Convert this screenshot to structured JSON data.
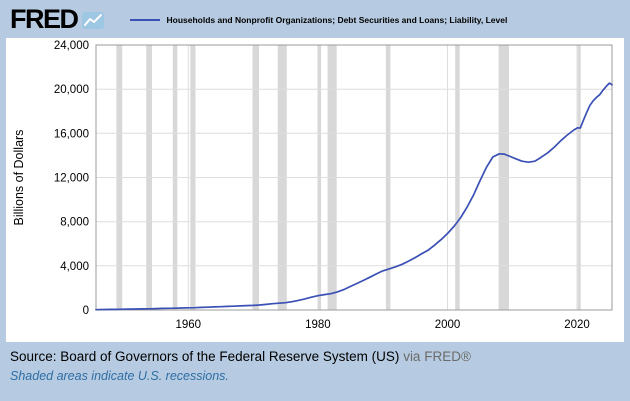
{
  "colors": {
    "frame_bg": "#b6cbe1",
    "plot_bg": "#ffffff",
    "grid": "#dedede",
    "plot_border": "#9b9b9b",
    "recession": "#d8d8d8",
    "line": "#3a50b4",
    "axis_text": "#000000",
    "source_muted": "#6b6b6b",
    "note_blue": "#2e6da4",
    "logo_icon_bg": "#9ec7e4",
    "logo_icon_line": "#ffffff"
  },
  "header": {
    "logo_text": "FRED",
    "legend_label": "Households and Nonprofit Organizations; Debt Securities and Loans; Liability, Level"
  },
  "footer": {
    "source_prefix": "Source: Board of Governors of the Federal Reserve System (US)",
    "source_suffix": "via FRED®",
    "note": "Shaded areas indicate U.S. recessions."
  },
  "chart_data": {
    "type": "line",
    "title": "Households and Nonprofit Organizations; Debt Securities and Loans; Liability, Level",
    "xlabel": "",
    "ylabel": "Billions of Dollars",
    "xlim": [
      1945.75,
      2025.4
    ],
    "ylim": [
      0,
      24000
    ],
    "y_ticks": [
      0,
      4000,
      8000,
      12000,
      16000,
      20000,
      24000
    ],
    "y_tick_labels": [
      "0",
      "4,000",
      "8,000",
      "12,000",
      "16,000",
      "20,000",
      "24,000"
    ],
    "x_ticks": [
      1960,
      1980,
      2000,
      2020
    ],
    "x_tick_labels": [
      "1960",
      "1980",
      "2000",
      "2020"
    ],
    "grid": true,
    "legend_position": "top",
    "recessions": [
      [
        1948.9,
        1949.8
      ],
      [
        1953.5,
        1954.4
      ],
      [
        1957.6,
        1958.3
      ],
      [
        1960.3,
        1961.1
      ],
      [
        1969.9,
        1970.9
      ],
      [
        1973.8,
        1975.2
      ],
      [
        1980.0,
        1980.5
      ],
      [
        1981.5,
        1982.9
      ],
      [
        1990.5,
        1991.2
      ],
      [
        2001.2,
        2001.9
      ],
      [
        2007.9,
        2009.5
      ],
      [
        2020.1,
        2020.3
      ]
    ],
    "series": [
      {
        "name": "Households and Nonprofit Organizations; Debt Securities and Loans; Liability, Level",
        "points": [
          [
            1945.75,
            29
          ],
          [
            1947,
            45
          ],
          [
            1948,
            52
          ],
          [
            1949,
            58
          ],
          [
            1950,
            68
          ],
          [
            1951,
            78
          ],
          [
            1952,
            90
          ],
          [
            1953,
            101
          ],
          [
            1954,
            112
          ],
          [
            1955,
            130
          ],
          [
            1956,
            143
          ],
          [
            1957,
            153
          ],
          [
            1958,
            164
          ],
          [
            1959,
            185
          ],
          [
            1960,
            199
          ],
          [
            1961,
            212
          ],
          [
            1962,
            231
          ],
          [
            1963,
            254
          ],
          [
            1964,
            278
          ],
          [
            1965,
            302
          ],
          [
            1966,
            322
          ],
          [
            1967,
            342
          ],
          [
            1968,
            370
          ],
          [
            1969,
            398
          ],
          [
            1970,
            417
          ],
          [
            1971,
            455
          ],
          [
            1972,
            510
          ],
          [
            1973,
            570
          ],
          [
            1974,
            620
          ],
          [
            1975,
            665
          ],
          [
            1976,
            750
          ],
          [
            1977,
            865
          ],
          [
            1978,
            1005
          ],
          [
            1979,
            1160
          ],
          [
            1980,
            1295
          ],
          [
            1981,
            1395
          ],
          [
            1982,
            1480
          ],
          [
            1983,
            1640
          ],
          [
            1984,
            1850
          ],
          [
            1985,
            2130
          ],
          [
            1986,
            2400
          ],
          [
            1987,
            2670
          ],
          [
            1988,
            2960
          ],
          [
            1989,
            3260
          ],
          [
            1990,
            3540
          ],
          [
            1991,
            3720
          ],
          [
            1992,
            3910
          ],
          [
            1993,
            4140
          ],
          [
            1994,
            4430
          ],
          [
            1995,
            4750
          ],
          [
            1996,
            5080
          ],
          [
            1997,
            5410
          ],
          [
            1998,
            5870
          ],
          [
            1999,
            6370
          ],
          [
            2000,
            6930
          ],
          [
            2001,
            7560
          ],
          [
            2002,
            8330
          ],
          [
            2003,
            9290
          ],
          [
            2004,
            10390
          ],
          [
            2005,
            11670
          ],
          [
            2006,
            12900
          ],
          [
            2007,
            13860
          ],
          [
            2008,
            14150
          ],
          [
            2008.75,
            14120
          ],
          [
            2009.5,
            13950
          ],
          [
            2010.5,
            13700
          ],
          [
            2011.5,
            13480
          ],
          [
            2012.5,
            13390
          ],
          [
            2013.5,
            13480
          ],
          [
            2014.5,
            13850
          ],
          [
            2015.5,
            14250
          ],
          [
            2016.5,
            14750
          ],
          [
            2017.5,
            15330
          ],
          [
            2018.5,
            15850
          ],
          [
            2019.5,
            16300
          ],
          [
            2020.1,
            16500
          ],
          [
            2020.5,
            16480
          ],
          [
            2021,
            17200
          ],
          [
            2021.5,
            17900
          ],
          [
            2022,
            18550
          ],
          [
            2022.5,
            18950
          ],
          [
            2023,
            19250
          ],
          [
            2023.5,
            19500
          ],
          [
            2024,
            19900
          ],
          [
            2024.5,
            20250
          ],
          [
            2025,
            20550
          ],
          [
            2025.4,
            20400
          ]
        ]
      }
    ]
  }
}
